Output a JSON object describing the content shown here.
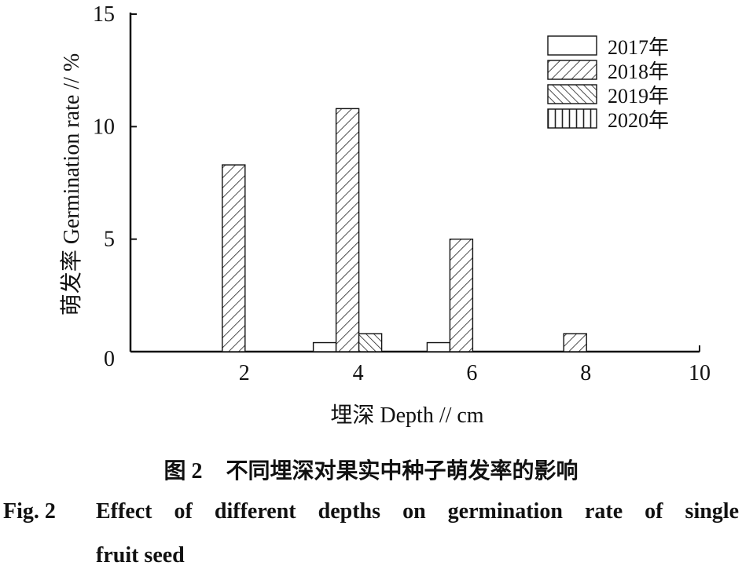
{
  "chart_data": {
    "type": "bar",
    "xlabel": "埋深 Depth // cm",
    "ylabel": "萌发率 Germination rate // %",
    "xlim": [
      0,
      10
    ],
    "ylim": [
      0,
      15
    ],
    "x_ticks": [
      "2",
      "4",
      "6",
      "8",
      "10"
    ],
    "y_ticks": [
      "0",
      "5",
      "10",
      "15"
    ],
    "categories": [
      2,
      4,
      6,
      8
    ],
    "series": [
      {
        "name": "2017年",
        "pattern": "none",
        "values": [
          0,
          0.4,
          0.4,
          0
        ]
      },
      {
        "name": "2018年",
        "pattern": "diagonal-forward",
        "values": [
          8.3,
          10.8,
          5.0,
          0.8
        ]
      },
      {
        "name": "2019年",
        "pattern": "diagonal-backward",
        "values": [
          0,
          0.8,
          0,
          0
        ]
      },
      {
        "name": "2020年",
        "pattern": "vertical",
        "values": [
          0,
          0,
          0,
          0
        ]
      }
    ],
    "legend_position": "top-right",
    "grid": false
  },
  "caption": {
    "cn_number": "图 2",
    "cn_text": "不同埋深对果实中种子萌发率的影响",
    "en_number": "Fig. 2",
    "en_text_line1": "Effect of different depths on germination rate of single",
    "en_text_line2": "fruit seed"
  }
}
